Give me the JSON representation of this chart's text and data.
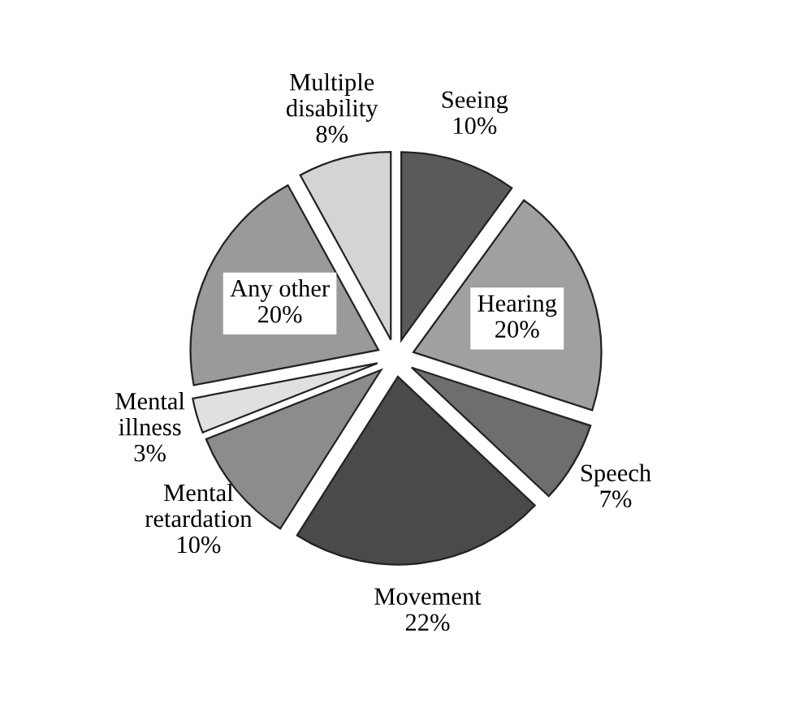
{
  "chart_data": {
    "type": "pie",
    "categories": [
      "Seeing",
      "Hearing",
      "Speech",
      "Movement",
      "Mental\nretardation",
      "Mental\nillness",
      "Any other",
      "Multiple\ndisability"
    ],
    "values": [
      10,
      20,
      7,
      22,
      10,
      3,
      20,
      8
    ],
    "value_labels": [
      "10%",
      "20%",
      "7%",
      "22%",
      "10%",
      "3%",
      "20%",
      "8%"
    ],
    "colors": [
      "#5a5a5a",
      "#a0a0a0",
      "#6e6e6e",
      "#4a4a4a",
      "#8c8c8c",
      "#e0e0e0",
      "#9a9a9a",
      "#d4d4d4"
    ],
    "legend": false
  }
}
